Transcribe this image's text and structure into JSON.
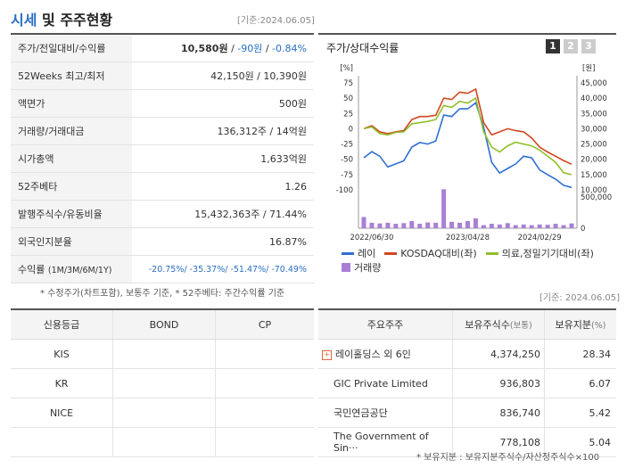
{
  "header": {
    "title_a": "시세",
    "title_b": " 및 주주현황",
    "date": "[기준:2024.06.05]"
  },
  "quote": {
    "rows": [
      {
        "label": "주가/전일대비/수익률",
        "v1": "10,580원",
        "v2": "-90원",
        "v3": "-0.84%"
      },
      {
        "label": "52Weeks 최고/최저",
        "value": "42,150원 / 10,390원"
      },
      {
        "label": "액면가",
        "value": "500원"
      },
      {
        "label": "거래량/거래대금",
        "value": "136,312주 / 14억원"
      },
      {
        "label": "시가총액",
        "value": "1,633억원"
      },
      {
        "label": "52주베타",
        "value": "1.26"
      },
      {
        "label": "발행주식수/유동비율",
        "value": "15,432,363주 / 71.44%"
      },
      {
        "label": "외국인지분율",
        "value": "16.87%"
      }
    ],
    "return_row": {
      "label": "수익률",
      "sub": "(1M/3M/6M/1Y)",
      "value": "-20.75%/ -35.37%/ -51.47%/ -70.49%"
    },
    "footnote": "* 수정주가(차트포함), 보통주 기준, * 52주베타: 주간수익률 기준"
  },
  "chart_panel": {
    "title": "주가/상대수익률",
    "pages": [
      "1",
      "2",
      "3"
    ],
    "active_page": 0,
    "legend": [
      {
        "label": "레이",
        "color": "#2f6fd2",
        "kind": "line"
      },
      {
        "label": "KOSDAQ대비(좌)",
        "color": "#d0461f",
        "kind": "line"
      },
      {
        "label": "의료,정밀기기대비(좌)",
        "color": "#8fbf2a",
        "kind": "line"
      },
      {
        "label": "거래량",
        "color": "#a97fd6",
        "kind": "box"
      }
    ]
  },
  "chart_data": {
    "type": "line",
    "x_tick_labels": [
      "2022/06/30",
      "2023/04/28",
      "2024/02/29"
    ],
    "left_axis": {
      "unit": "[%]",
      "ticks": [
        75,
        50,
        25,
        0,
        -25,
        -50,
        -75,
        -100
      ],
      "ylim": [
        -100,
        75
      ]
    },
    "right_axis": {
      "unit": "[원]",
      "ticks": [
        "45,000",
        "40,000",
        "35,000",
        "30,000",
        "25,000",
        "20,000",
        "15,000",
        "10,000"
      ],
      "ylim": [
        10000,
        45000
      ]
    },
    "volume_axis": {
      "ticks": [
        "500,000",
        "0"
      ],
      "ylim": [
        0,
        1000000
      ]
    },
    "series": [
      {
        "name": "레이",
        "axis": "right",
        "color": "#2f6fd2",
        "values": [
          20500,
          22500,
          21000,
          17500,
          18500,
          19500,
          24000,
          25500,
          25000,
          26000,
          34500,
          34000,
          36500,
          36500,
          38500,
          30500,
          19000,
          15500,
          17000,
          18500,
          21000,
          20500,
          16500,
          15000,
          13500,
          11500,
          10800
        ]
      },
      {
        "name": "KOSDAQ대비(좌)",
        "axis": "left",
        "color": "#d0461f",
        "values": [
          0,
          5,
          -5,
          -8,
          -5,
          -3,
          15,
          20,
          20,
          22,
          50,
          48,
          60,
          58,
          65,
          10,
          -10,
          -5,
          0,
          -3,
          -5,
          -15,
          -30,
          -38,
          -45,
          -52,
          -58
        ]
      },
      {
        "name": "의료,정밀기기대비(좌)",
        "axis": "left",
        "color": "#8fbf2a",
        "values": [
          0,
          3,
          -8,
          -10,
          -6,
          -5,
          8,
          10,
          12,
          15,
          38,
          35,
          45,
          42,
          50,
          -5,
          -30,
          -38,
          -28,
          -22,
          -25,
          -28,
          -35,
          -45,
          -55,
          -72,
          -75
        ]
      },
      {
        "name": "거래량",
        "axis": "volume",
        "color": "#a97fd6",
        "kind": "bar",
        "values": [
          330000,
          160000,
          140000,
          160000,
          130000,
          150000,
          210000,
          130000,
          170000,
          160000,
          1150000,
          190000,
          160000,
          210000,
          290000,
          90000,
          130000,
          110000,
          150000,
          90000,
          110000,
          90000,
          110000,
          100000,
          130000,
          90000,
          140000
        ]
      }
    ]
  },
  "credit": {
    "headers": [
      "신용등급",
      "BOND",
      "CP"
    ],
    "rows": [
      [
        "KIS",
        "",
        ""
      ],
      [
        "KR",
        "",
        ""
      ],
      [
        "NICE",
        "",
        ""
      ],
      [
        "",
        "",
        ""
      ]
    ]
  },
  "holders": {
    "date": "[기준: 2024.06.05]",
    "headers": {
      "name": "주요주주",
      "shares": "보유주식수",
      "shares_unit": "(보통)",
      "pct": "보유지분",
      "pct_unit": "(%)"
    },
    "rows": [
      {
        "name": "레이홀딩스 외 6인",
        "shares": "4,374,250",
        "pct": "28.34",
        "expand": true
      },
      {
        "name": "GIC Private Limited",
        "shares": "936,803",
        "pct": "6.07"
      },
      {
        "name": "국민연금공단",
        "shares": "836,740",
        "pct": "5.42"
      },
      {
        "name": "The Government of Sin···",
        "shares": "778,108",
        "pct": "5.04"
      }
    ],
    "footnote": "* 보유지분 : 보유지분주식수/자산정주식수×100"
  }
}
